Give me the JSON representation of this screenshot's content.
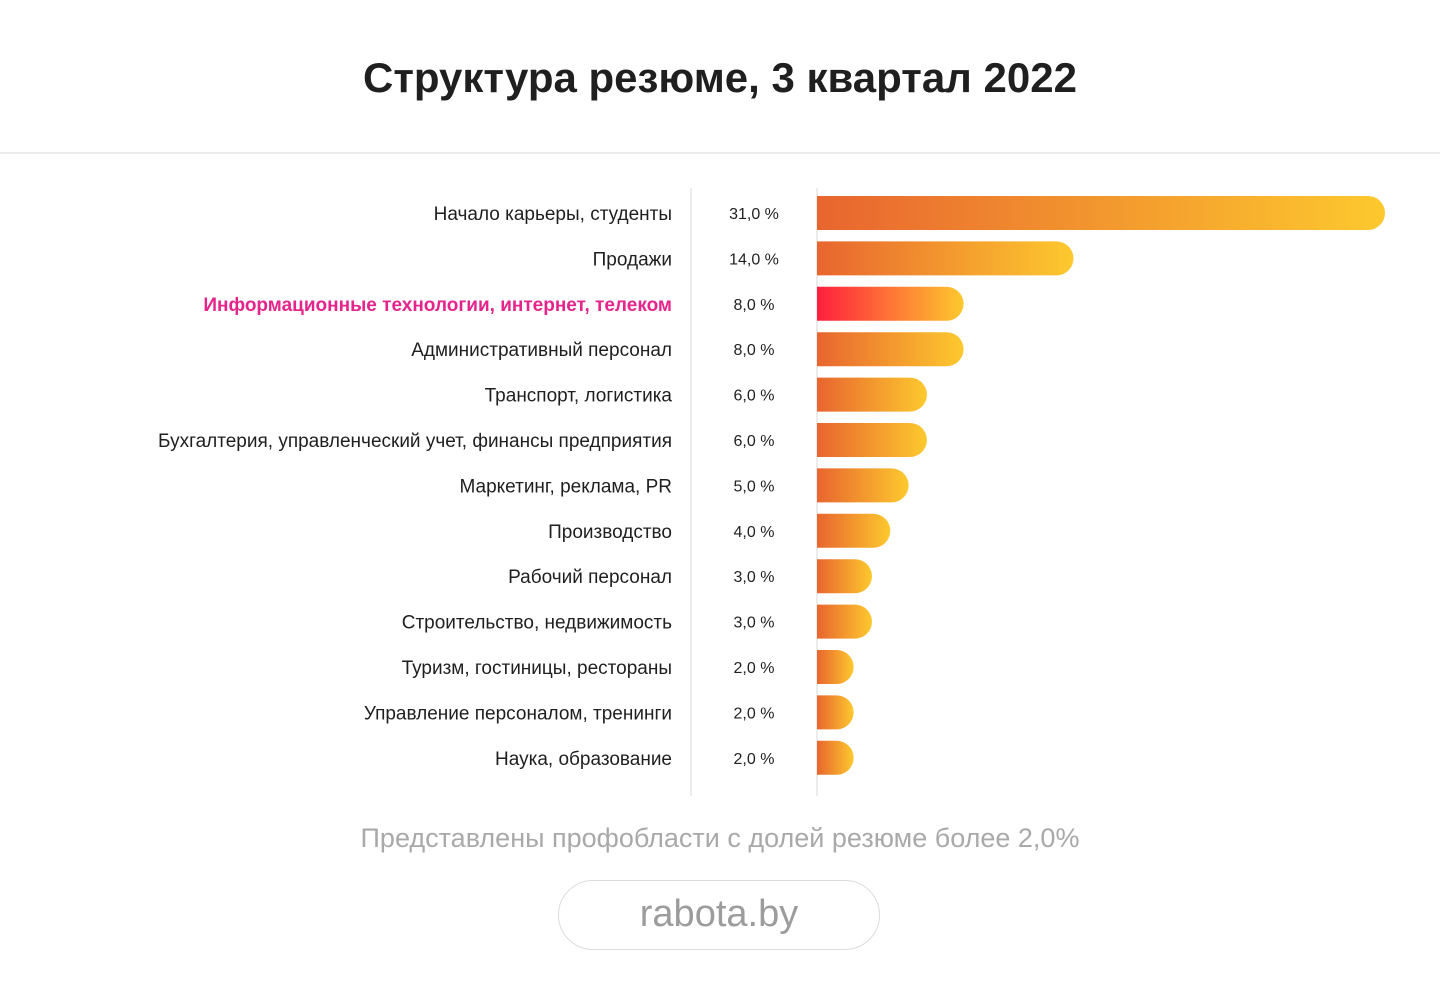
{
  "title": "Структура резюме, 3 квартал 2022",
  "footnote": "Представлены профобласти с долей резюме более 2,0%",
  "brand": "rabota.by",
  "colors": {
    "gradient_start": "#e8652f",
    "gradient_end": "#fdc92e",
    "highlight_start": "#fe1f3e",
    "highlight_end": "#fdc92e",
    "highlight_text": "#e5258b",
    "text": "#1f1f1f",
    "footnote": "#a9a9a9"
  },
  "chart_data": {
    "type": "bar",
    "orientation": "horizontal",
    "title": "Структура резюме, 3 квартал 2022",
    "categories": [
      "Начало карьеры, студенты",
      "Продажи",
      "Информационные технологии, интернет, телеком",
      "Административный персонал",
      "Транспорт, логистика",
      "Бухгалтерия, управленческий учет, финансы предприятия",
      "Маркетинг, реклама, PR",
      "Производство",
      "Рабочий персонал",
      "Строительство, недвижимость",
      "Туризм, гостиницы, рестораны",
      "Управление персоналом, тренинги",
      "Наука, образование"
    ],
    "values": [
      31.0,
      14.0,
      8.0,
      8.0,
      6.0,
      6.0,
      5.0,
      4.0,
      3.0,
      3.0,
      2.0,
      2.0,
      2.0
    ],
    "value_labels": [
      "31,0 %",
      "14,0 %",
      "8,0 %",
      "8,0 %",
      "6,0 %",
      "6,0 %",
      "5,0 %",
      "4,0 %",
      "3,0 %",
      "3,0 %",
      "2,0 %",
      "2,0 %",
      "2,0 %"
    ],
    "highlight_category": "Информационные технологии, интернет, телеком",
    "xlim": [
      0,
      31
    ],
    "grid": false,
    "legend": "none"
  }
}
